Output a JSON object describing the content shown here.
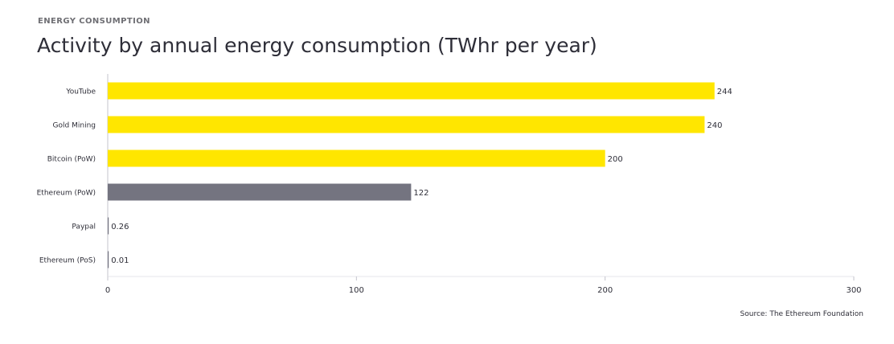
{
  "header": {
    "kicker": "ENERGY CONSUMPTION",
    "title": "Activity by annual energy consumption (TWhr per year)"
  },
  "footer": {
    "source": "Source: The Ethereum Foundation"
  },
  "colors": {
    "highlight": "#FFE600",
    "muted": "#747480",
    "text": "#2E2E38",
    "axis": "#C4C4CD",
    "grid": "#E6E6EB"
  },
  "chart_data": {
    "type": "bar",
    "orientation": "horizontal",
    "categories": [
      "YouTube",
      "Gold Mining",
      "Bitcoin (PoW)",
      "Ethereum (PoW)",
      "Paypal",
      "Ethereum (PoS)"
    ],
    "values": [
      244,
      240,
      200,
      122,
      0.26,
      0.01
    ],
    "value_labels": [
      "244",
      "240",
      "200",
      "122",
      "0.26",
      "0.01"
    ],
    "bar_colors": [
      "#FFE600",
      "#FFE600",
      "#FFE600",
      "#747480",
      "#747480",
      "#747480"
    ],
    "xlim": [
      0,
      300
    ],
    "xticks": [
      0,
      100,
      200,
      300
    ],
    "xtick_labels": [
      "0",
      "100",
      "200",
      "300"
    ],
    "grid": false
  }
}
